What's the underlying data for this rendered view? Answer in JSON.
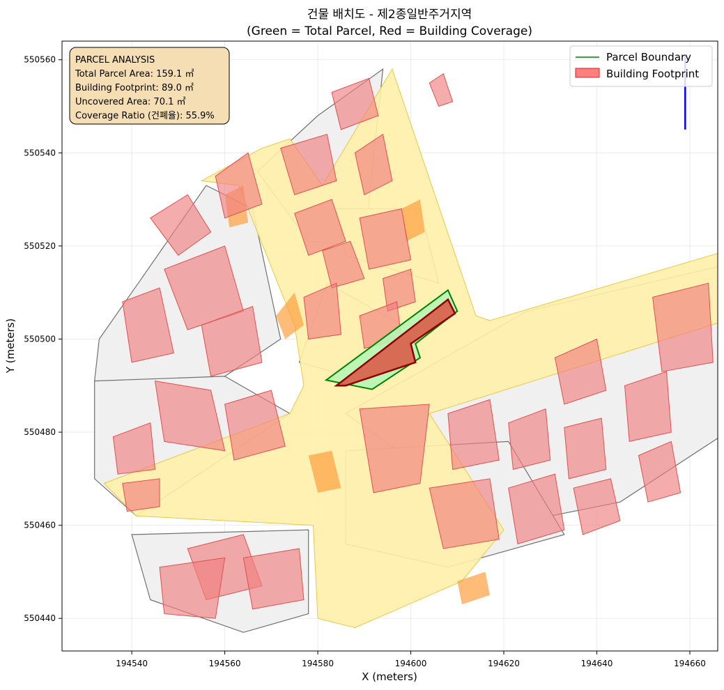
{
  "chart_data": {
    "type": "map",
    "title": "건물 배치도 - 제2종일반주거지역",
    "subtitle": "(Green = Total Parcel, Red = Building Coverage)",
    "xlabel": "X (meters)",
    "ylabel": "Y (meters)",
    "xlim": [
      194525,
      194666
    ],
    "ylim": [
      550433,
      550564
    ],
    "xticks": [
      194540,
      194560,
      194580,
      194600,
      194620,
      194640,
      194660
    ],
    "yticks": [
      550440,
      550460,
      550480,
      550500,
      550520,
      550540,
      550560
    ],
    "grid": true,
    "legend": {
      "placement": "top-right",
      "entries": [
        {
          "label": "Parcel Boundary",
          "color": "#008000",
          "kind": "line"
        },
        {
          "label": "Building Footprint",
          "color": "#ff7f7f",
          "kind": "patch"
        }
      ]
    },
    "info_box": {
      "lines": [
        "PARCEL ANALYSIS",
        "Total Parcel Area: 159.1 ㎡",
        "Building Footprint: 89.0 ㎡",
        "Uncovered Area: 70.1 ㎡",
        "Coverage Ratio (건폐율): 55.9%"
      ]
    },
    "target_parcel": [
      [
        194581.8,
        550491.2
      ],
      [
        194608,
        550510.5
      ],
      [
        194610,
        550506
      ],
      [
        194601,
        550499
      ],
      [
        194602,
        550496
      ],
      [
        194591.7,
        550489.2
      ]
    ],
    "target_building": [
      [
        194584,
        550490
      ],
      [
        194608,
        550508.5
      ],
      [
        194609.5,
        550505.5
      ],
      [
        194600,
        550499
      ],
      [
        194601,
        550495
      ],
      [
        194586,
        550490
      ]
    ],
    "roads": [
      [
        [
          194568,
          550541
        ],
        [
          194574,
          550543
        ],
        [
          194581,
          550533
        ],
        [
          194596,
          550558
        ],
        [
          194614,
          550505
        ],
        [
          194617,
          550504
        ],
        [
          194668,
          550519
        ],
        [
          194671,
          550505
        ],
        [
          194604,
          550484
        ],
        [
          194620,
          550459
        ],
        [
          194611,
          550448
        ],
        [
          194588,
          550438
        ],
        [
          194580,
          550440
        ],
        [
          194579,
          550460
        ],
        [
          194541,
          550462
        ],
        [
          194534,
          550469
        ],
        [
          194574,
          550484
        ],
        [
          194577,
          550490
        ],
        [
          194575,
          550503
        ],
        [
          194563,
          550533
        ],
        [
          194555,
          550534
        ]
      ]
    ],
    "blocks": [
      [
        [
          194533,
          550500
        ],
        [
          194540,
          550510
        ],
        [
          194556,
          550533
        ],
        [
          194566,
          550528
        ],
        [
          194572,
          550500
        ],
        [
          194560,
          550492
        ],
        [
          194540,
          550488
        ],
        [
          194532,
          550491
        ]
      ],
      [
        [
          194532,
          550491
        ],
        [
          194560,
          550492
        ],
        [
          194574,
          550484
        ],
        [
          194541,
          550462
        ],
        [
          194532,
          550470
        ]
      ],
      [
        [
          194540,
          550458
        ],
        [
          194578,
          550459
        ],
        [
          194578,
          550441
        ],
        [
          194564,
          550437
        ],
        [
          194544,
          550444
        ]
      ],
      [
        [
          194567,
          550536
        ],
        [
          194580,
          550548
        ],
        [
          194594,
          550558
        ],
        [
          194590,
          550520
        ],
        [
          194578,
          550521
        ]
      ],
      [
        [
          194586,
          550518
        ],
        [
          194606,
          550512
        ],
        [
          194602,
          550528
        ],
        [
          194584,
          550528
        ]
      ],
      [
        [
          194582,
          550512
        ],
        [
          194600,
          550502
        ],
        [
          194594,
          550490
        ],
        [
          194576,
          550495
        ]
      ],
      [
        [
          194586,
          550484
        ],
        [
          194625,
          550506
        ],
        [
          194668,
          550516
        ],
        [
          194668,
          550480
        ],
        [
          194645,
          550465
        ],
        [
          194620,
          550460
        ]
      ],
      [
        [
          194586,
          550476
        ],
        [
          194621,
          550478
        ],
        [
          194633,
          550458
        ],
        [
          194608,
          550451
        ],
        [
          194586,
          550456
        ]
      ]
    ],
    "buildings": [
      [
        [
          194558,
          550535
        ],
        [
          194565,
          550540
        ],
        [
          194568,
          550529
        ],
        [
          194560,
          550526
        ]
      ],
      [
        [
          194544,
          550526
        ],
        [
          194552,
          550531
        ],
        [
          194557,
          550523
        ],
        [
          194550,
          550518
        ]
      ],
      [
        [
          194547,
          550515
        ],
        [
          194560,
          550520
        ],
        [
          194564,
          550506
        ],
        [
          194552,
          550502
        ]
      ],
      [
        [
          194538,
          550508
        ],
        [
          194546,
          550511
        ],
        [
          194549,
          550497
        ],
        [
          194540,
          550495
        ]
      ],
      [
        [
          194555,
          550503
        ],
        [
          194566,
          550507
        ],
        [
          194568,
          550495
        ],
        [
          194557,
          550492
        ]
      ],
      [
        [
          194545,
          550491
        ],
        [
          194557,
          550489
        ],
        [
          194560,
          550476
        ],
        [
          194547,
          550478
        ]
      ],
      [
        [
          194560,
          550486
        ],
        [
          194570,
          550489
        ],
        [
          194573,
          550477
        ],
        [
          194562,
          550474
        ]
      ],
      [
        [
          194536,
          550479
        ],
        [
          194544,
          550482
        ],
        [
          194545,
          550472
        ],
        [
          194537,
          550471
        ]
      ],
      [
        [
          194538,
          550469
        ],
        [
          194546,
          550470
        ],
        [
          194546,
          550464
        ],
        [
          194539,
          550463
        ]
      ],
      [
        [
          194552,
          550455
        ],
        [
          194564,
          550458
        ],
        [
          194568,
          550447
        ],
        [
          194556,
          550444
        ]
      ],
      [
        [
          194546,
          550451
        ],
        [
          194560,
          550453
        ],
        [
          194558,
          550440
        ],
        [
          194547,
          550441
        ]
      ],
      [
        [
          194564,
          550453
        ],
        [
          194576,
          550455
        ],
        [
          194577,
          550444
        ],
        [
          194566,
          550442
        ]
      ],
      [
        [
          194572,
          550541
        ],
        [
          194582,
          550544
        ],
        [
          194584,
          550534
        ],
        [
          194575,
          550531
        ]
      ],
      [
        [
          194583,
          550553
        ],
        [
          194591,
          550556
        ],
        [
          194593,
          550548
        ],
        [
          194585,
          550545
        ]
      ],
      [
        [
          194588,
          550540
        ],
        [
          194594,
          550544
        ],
        [
          194596,
          550534
        ],
        [
          194590,
          550531
        ]
      ],
      [
        [
          194575,
          550527
        ],
        [
          194583,
          550530
        ],
        [
          194586,
          550521
        ],
        [
          194578,
          550518
        ]
      ],
      [
        [
          194589,
          550526
        ],
        [
          194598,
          550528
        ],
        [
          194600,
          550517
        ],
        [
          194591,
          550515
        ]
      ],
      [
        [
          194581,
          550519
        ],
        [
          194587,
          550521
        ],
        [
          194590,
          550513
        ],
        [
          194583,
          550511
        ]
      ],
      [
        [
          194594,
          550513
        ],
        [
          194600,
          550515
        ],
        [
          194601,
          550508
        ],
        [
          194595,
          550506
        ]
      ],
      [
        [
          194577,
          550509
        ],
        [
          194584,
          550512
        ],
        [
          194585,
          550501
        ],
        [
          194578,
          550500
        ]
      ],
      [
        [
          194589,
          550505
        ],
        [
          194597,
          550508
        ],
        [
          194598,
          550500
        ],
        [
          194590,
          550498
        ]
      ],
      [
        [
          194589,
          550485
        ],
        [
          194604,
          550486
        ],
        [
          194602,
          550469
        ],
        [
          194592,
          550467
        ]
      ],
      [
        [
          194608,
          550484
        ],
        [
          194617,
          550487
        ],
        [
          194619,
          550474
        ],
        [
          194609,
          550472
        ]
      ],
      [
        [
          194621,
          550482
        ],
        [
          194629,
          550485
        ],
        [
          194630,
          550474
        ],
        [
          194622,
          550472
        ]
      ],
      [
        [
          194633,
          550481
        ],
        [
          194641,
          550483
        ],
        [
          194642,
          550472
        ],
        [
          194634,
          550470
        ]
      ],
      [
        [
          194631,
          550496
        ],
        [
          194640,
          550500
        ],
        [
          194642,
          550489
        ],
        [
          194633,
          550486
        ]
      ],
      [
        [
          194646,
          550490
        ],
        [
          194655,
          550493
        ],
        [
          194656,
          550480
        ],
        [
          194647,
          550478
        ]
      ],
      [
        [
          194652,
          550509
        ],
        [
          194664,
          550512
        ],
        [
          194665,
          550495
        ],
        [
          194654,
          550493
        ]
      ],
      [
        [
          194604,
          550468
        ],
        [
          194617,
          550470
        ],
        [
          194619,
          550457
        ],
        [
          194607,
          550455
        ]
      ],
      [
        [
          194621,
          550468
        ],
        [
          194631,
          550471
        ],
        [
          194633,
          550459
        ],
        [
          194623,
          550456
        ]
      ],
      [
        [
          194635,
          550468
        ],
        [
          194643,
          550470
        ],
        [
          194645,
          550461
        ],
        [
          194637,
          550458
        ]
      ],
      [
        [
          194649,
          550475
        ],
        [
          194656,
          550478
        ],
        [
          194658,
          550467
        ],
        [
          194651,
          550465
        ]
      ]
    ],
    "orange_patches": [
      [
        [
          194560,
          550531
        ],
        [
          194564,
          550533
        ],
        [
          194565,
          550525
        ],
        [
          194561,
          550524
        ]
      ],
      [
        [
          194571,
          550505
        ],
        [
          194575,
          550510
        ],
        [
          194577,
          550503
        ],
        [
          194573,
          550500
        ]
      ],
      [
        [
          194578,
          550475
        ],
        [
          194583,
          550476
        ],
        [
          194585,
          550468
        ],
        [
          194580,
          550467
        ]
      ],
      [
        [
          194598,
          550528
        ],
        [
          194602,
          550530
        ],
        [
          194603,
          550523
        ],
        [
          194599,
          550521
        ]
      ],
      [
        [
          194610,
          550448
        ],
        [
          194616,
          550450
        ],
        [
          194617,
          550445
        ],
        [
          194611,
          550443
        ]
      ]
    ],
    "pink_patch": [
      [
        194604,
        550555
      ],
      [
        194607,
        550557
      ],
      [
        194609,
        550551
      ],
      [
        194606,
        550550
      ]
    ],
    "blue_line": [
      [
        194659,
        550561
      ],
      [
        194659,
        550545
      ]
    ]
  }
}
